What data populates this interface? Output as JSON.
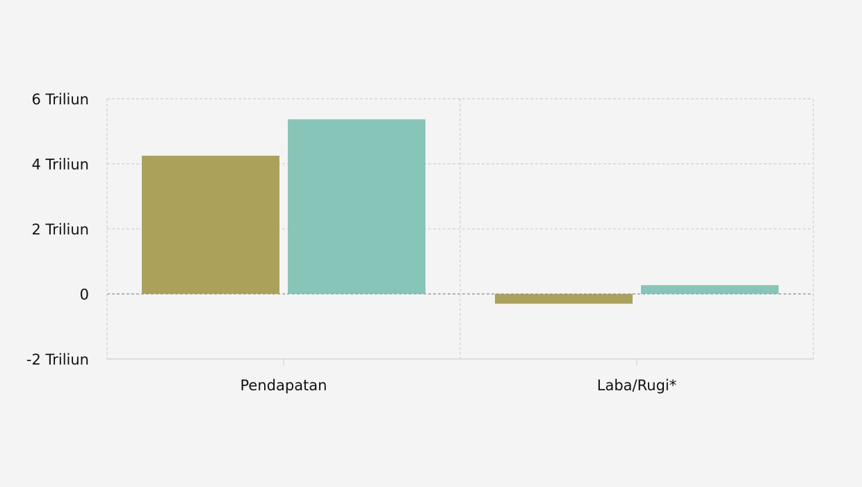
{
  "chart_data": {
    "type": "bar",
    "title": "",
    "xlabel": "",
    "ylabel": "",
    "categories": [
      "Pendapatan",
      "Laba/Rugi*"
    ],
    "series": [
      {
        "values": [
          4.25,
          -0.3
        ],
        "color": "#aca15a"
      },
      {
        "values": [
          5.37,
          0.27
        ],
        "color": "#88c5b9"
      }
    ],
    "ylim": [
      -2,
      6
    ],
    "yticks": [
      {
        "value": 6,
        "label": "6 Triliun"
      },
      {
        "value": 4,
        "label": "4 Triliun"
      },
      {
        "value": 2,
        "label": "2 Triliun"
      },
      {
        "value": 0,
        "label": "0"
      },
      {
        "value": -2,
        "label": "-2 Triliun"
      }
    ],
    "grid": true,
    "legend": "none"
  }
}
